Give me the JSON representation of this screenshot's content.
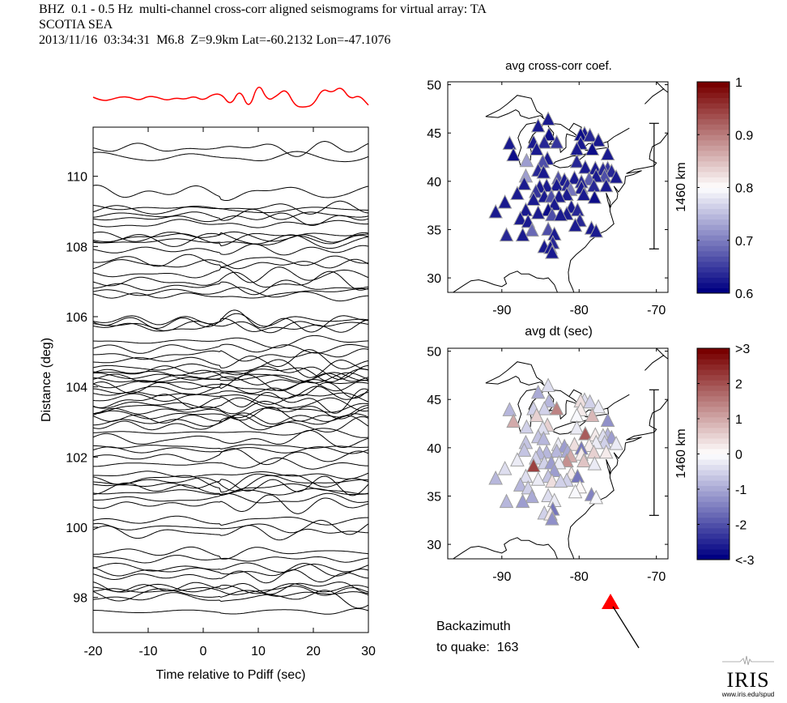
{
  "header": {
    "line1": "BHZ  0.1 - 0.5 Hz  multi-channel cross-corr aligned seismograms for virtual array: TA",
    "line2": "SCOTIA SEA",
    "line3": "2013/11/16  03:34:31  M6.8  Z=9.9km Lat=-60.2132 Lon=-47.1076"
  },
  "chart_data": [
    {
      "type": "line",
      "name": "record-section",
      "title": "",
      "xlabel": "Time relative to Pdiff (sec)",
      "ylabel": "Distance (deg)",
      "xlim": [
        -20,
        30
      ],
      "ylim": [
        97,
        111.4
      ],
      "xticks": [
        -20,
        -10,
        0,
        10,
        20,
        30
      ],
      "yticks": [
        98,
        100,
        102,
        104,
        106,
        108,
        110
      ],
      "trace_color": "#000000",
      "stack_trace": {
        "color": "#ff0000",
        "description": "stacked/beam trace above section",
        "samples": [
          0.0,
          -0.35,
          -0.2,
          0.05,
          0.0,
          -0.3,
          0.1,
          0.0,
          -0.3,
          -0.05,
          -0.2,
          0.1,
          -0.3,
          0.25,
          0.3,
          -0.8,
          0.8,
          -1.2,
          1.4,
          -0.35,
          0.1,
          0.8,
          -0.8,
          -0.9,
          -0.7,
          0.8,
          0.35,
          1.0,
          -0.2,
          0.2,
          -0.7
        ]
      },
      "trace_distances_deg": [
        110.8,
        110.55,
        109.55,
        109.1,
        109.05,
        108.9,
        108.8,
        108.65,
        108.3,
        108.25,
        108.2,
        108.15,
        107.9,
        107.6,
        107.5,
        107.2,
        107.0,
        106.85,
        106.7,
        106.6,
        105.9,
        105.85,
        105.75,
        105.7,
        105.3,
        105.1,
        104.9,
        104.75,
        104.55,
        104.45,
        104.4,
        104.3,
        104.25,
        104.2,
        104.1,
        104.0,
        103.9,
        103.8,
        103.7,
        103.6,
        103.5,
        103.4,
        103.3,
        103.2,
        103.1,
        103.0,
        102.9,
        102.7,
        102.5,
        102.3,
        102.2,
        102.0,
        101.8,
        101.5,
        101.35,
        101.3,
        101.2,
        101.1,
        101.0,
        100.8,
        100.65,
        100.2,
        100.0,
        99.85,
        99.3,
        99.1,
        98.85,
        98.75,
        98.6,
        98.3,
        98.25,
        98.2,
        98.1,
        98.0,
        97.6
      ]
    },
    {
      "type": "scatter",
      "name": "map-cross-corr",
      "title": "avg cross-corr coef.",
      "xlabel": "avg dt (sec)",
      "xlim": [
        -97,
        -68.5
      ],
      "ylim": [
        28.5,
        50.3
      ],
      "xticks": [
        -90,
        -80,
        -70
      ],
      "yticks": [
        30,
        35,
        40,
        45,
        50
      ],
      "scale_bar_label": "1460 km",
      "colorbar": {
        "min": 0.6,
        "max": 1.0,
        "ticks": [
          "0.6",
          "0.7",
          "0.8",
          "0.9",
          "1"
        ]
      },
      "marker": "triangle"
    },
    {
      "type": "scatter",
      "name": "map-dt",
      "title": "avg dt (sec)",
      "xlabel": "",
      "xlim": [
        -97,
        -68.5
      ],
      "ylim": [
        28.5,
        50.3
      ],
      "xticks": [
        -90,
        -80,
        -70
      ],
      "yticks": [
        30,
        35,
        40,
        45,
        50
      ],
      "scale_bar_label": "1460 km",
      "colorbar": {
        "min": -3,
        "max": 3,
        "ticks": [
          "<-3",
          "-2",
          "-1",
          "0",
          "1",
          "2",
          ">3"
        ]
      },
      "marker": "triangle"
    }
  ],
  "stations": [
    {
      "lon": -84.0,
      "lat": 46.4,
      "cc": 0.62,
      "dt": -0.4
    },
    {
      "lon": -85.3,
      "lat": 45.7,
      "cc": 0.62,
      "dt": -1.0
    },
    {
      "lon": -83.9,
      "lat": 44.8,
      "cc": 0.61,
      "dt": -0.9
    },
    {
      "lon": -84.5,
      "lat": 44.0,
      "cc": 0.63,
      "dt": -0.6
    },
    {
      "lon": -85.9,
      "lat": 44.0,
      "cc": 0.62,
      "dt": -0.5
    },
    {
      "lon": -85.5,
      "lat": 43.3,
      "cc": 0.62,
      "dt": 0.6
    },
    {
      "lon": -82.9,
      "lat": 44.0,
      "cc": 0.64,
      "dt": 1.4
    },
    {
      "lon": -89.0,
      "lat": 43.9,
      "cc": 0.62,
      "dt": -0.9
    },
    {
      "lon": -88.5,
      "lat": 42.7,
      "cc": 0.61,
      "dt": 1.0
    },
    {
      "lon": -86.8,
      "lat": 42.1,
      "cc": 0.72,
      "dt": -0.6
    },
    {
      "lon": -84.7,
      "lat": 42.0,
      "cc": 0.66,
      "dt": -0.4
    },
    {
      "lon": -84.1,
      "lat": 42.3,
      "cc": 0.62,
      "dt": 0.5
    },
    {
      "lon": -79.8,
      "lat": 44.8,
      "cc": 0.61,
      "dt": 0.4
    },
    {
      "lon": -79.3,
      "lat": 44.9,
      "cc": 0.62,
      "dt": -0.4
    },
    {
      "lon": -78.6,
      "lat": 44.7,
      "cc": 0.63,
      "dt": -0.6
    },
    {
      "lon": -77.5,
      "lat": 44.2,
      "cc": 0.62,
      "dt": -0.2
    },
    {
      "lon": -79.8,
      "lat": 43.9,
      "cc": 0.62,
      "dt": 0.3
    },
    {
      "lon": -80.3,
      "lat": 43.3,
      "cc": 0.62,
      "dt": -0.1
    },
    {
      "lon": -78.3,
      "lat": 43.3,
      "cc": 0.61,
      "dt": 0.8
    },
    {
      "lon": -76.3,
      "lat": 42.8,
      "cc": 0.62,
      "dt": -1.3
    },
    {
      "lon": -80.3,
      "lat": 42.0,
      "cc": 0.63,
      "dt": -0.3
    },
    {
      "lon": -79.2,
      "lat": 41.4,
      "cc": 0.62,
      "dt": 1.9
    },
    {
      "lon": -77.9,
      "lat": 41.3,
      "cc": 0.62,
      "dt": 0.3
    },
    {
      "lon": -76.9,
      "lat": 41.2,
      "cc": 0.63,
      "dt": -0.4
    },
    {
      "lon": -76.3,
      "lat": 41.3,
      "cc": 0.64,
      "dt": -0.9
    },
    {
      "lon": -75.8,
      "lat": 41.0,
      "cc": 0.63,
      "dt": -1.2
    },
    {
      "lon": -76.7,
      "lat": 40.5,
      "cc": 0.66,
      "dt": -0.5
    },
    {
      "lon": -75.2,
      "lat": 40.4,
      "cc": 0.62,
      "dt": -0.2
    },
    {
      "lon": -77.8,
      "lat": 40.5,
      "cc": 0.62,
      "dt": -0.3
    },
    {
      "lon": -78.7,
      "lat": 40.2,
      "cc": 0.67,
      "dt": 0.3
    },
    {
      "lon": -78.1,
      "lat": 39.5,
      "cc": 0.63,
      "dt": 0.6
    },
    {
      "lon": -76.5,
      "lat": 39.5,
      "cc": 0.62,
      "dt": 0.3
    },
    {
      "lon": -79.7,
      "lat": 39.3,
      "cc": 0.62,
      "dt": 0.2
    },
    {
      "lon": -80.6,
      "lat": 40.3,
      "cc": 0.62,
      "dt": 0.4
    },
    {
      "lon": -79.7,
      "lat": 39.9,
      "cc": 0.63,
      "dt": -1.6
    },
    {
      "lon": -81.1,
      "lat": 39.1,
      "cc": 0.69,
      "dt": 1.0
    },
    {
      "lon": -81.9,
      "lat": 40.1,
      "cc": 0.62,
      "dt": -1.2
    },
    {
      "lon": -82.7,
      "lat": 40.3,
      "cc": 0.66,
      "dt": -0.3
    },
    {
      "lon": -82.9,
      "lat": 39.6,
      "cc": 0.62,
      "dt": -0.8
    },
    {
      "lon": -81.5,
      "lat": 39.6,
      "cc": 0.63,
      "dt": -1.0
    },
    {
      "lon": -79.4,
      "lat": 38.6,
      "cc": 0.62,
      "dt": 0.7
    },
    {
      "lon": -78.0,
      "lat": 38.3,
      "cc": 0.61,
      "dt": -0.2
    },
    {
      "lon": -85.3,
      "lat": 41.1,
      "cc": 0.63,
      "dt": -0.7
    },
    {
      "lon": -84.6,
      "lat": 40.9,
      "cc": 0.62,
      "dt": -0.8
    },
    {
      "lon": -86.9,
      "lat": 40.5,
      "cc": 0.72,
      "dt": -0.7
    },
    {
      "lon": -87.1,
      "lat": 39.7,
      "cc": 0.62,
      "dt": -0.7
    },
    {
      "lon": -85.1,
      "lat": 39.4,
      "cc": 0.62,
      "dt": -0.9
    },
    {
      "lon": -84.2,
      "lat": 39.5,
      "cc": 0.62,
      "dt": -0.8
    },
    {
      "lon": -85.6,
      "lat": 38.9,
      "cc": 0.64,
      "dt": -0.6
    },
    {
      "lon": -84.5,
      "lat": 38.4,
      "cc": 0.62,
      "dt": -0.6
    },
    {
      "lon": -83.6,
      "lat": 38.4,
      "cc": 0.66,
      "dt": -1.1
    },
    {
      "lon": -82.6,
      "lat": 38.4,
      "cc": 0.62,
      "dt": -0.3
    },
    {
      "lon": -81.6,
      "lat": 38.6,
      "cc": 0.62,
      "dt": 1.3
    },
    {
      "lon": -85.9,
      "lat": 38.1,
      "cc": 0.62,
      "dt": 2.3
    },
    {
      "lon": -88.0,
      "lat": 38.7,
      "cc": 0.62,
      "dt": -0.3
    },
    {
      "lon": -89.6,
      "lat": 37.8,
      "cc": 0.62,
      "dt": -0.4
    },
    {
      "lon": -90.8,
      "lat": 36.8,
      "cc": 0.62,
      "dt": -0.9
    },
    {
      "lon": -86.9,
      "lat": 37.0,
      "cc": 0.62,
      "dt": -0.4
    },
    {
      "lon": -85.3,
      "lat": 36.7,
      "cc": 0.62,
      "dt": -0.3
    },
    {
      "lon": -84.0,
      "lat": 37.0,
      "cc": 0.61,
      "dt": -0.7
    },
    {
      "lon": -83.5,
      "lat": 36.5,
      "cc": 0.66,
      "dt": 0.4
    },
    {
      "lon": -83.2,
      "lat": 37.6,
      "cc": 0.62,
      "dt": -1.1
    },
    {
      "lon": -82.4,
      "lat": 36.5,
      "cc": 0.62,
      "dt": -0.6
    },
    {
      "lon": -81.6,
      "lat": 36.6,
      "cc": 0.62,
      "dt": -0.5
    },
    {
      "lon": -81.0,
      "lat": 37.3,
      "cc": 0.62,
      "dt": 0.3
    },
    {
      "lon": -80.2,
      "lat": 37.0,
      "cc": 0.63,
      "dt": -1.6
    },
    {
      "lon": -87.6,
      "lat": 36.1,
      "cc": 0.62,
      "dt": -0.8
    },
    {
      "lon": -86.6,
      "lat": 35.8,
      "cc": 0.62,
      "dt": -0.5
    },
    {
      "lon": -86.1,
      "lat": 34.9,
      "cc": 0.68,
      "dt": -1.0
    },
    {
      "lon": -89.4,
      "lat": 34.4,
      "cc": 0.63,
      "dt": -0.9
    },
    {
      "lon": -87.3,
      "lat": 34.4,
      "cc": 0.62,
      "dt": -1.2
    },
    {
      "lon": -84.0,
      "lat": 35.0,
      "cc": 0.66,
      "dt": -0.4
    },
    {
      "lon": -83.2,
      "lat": 34.5,
      "cc": 0.62,
      "dt": -0.3
    },
    {
      "lon": -84.5,
      "lat": 33.2,
      "cc": 0.62,
      "dt": -0.5
    },
    {
      "lon": -83.7,
      "lat": 33.1,
      "cc": 0.62,
      "dt": 0.3
    },
    {
      "lon": -83.4,
      "lat": 33.6,
      "cc": 0.63,
      "dt": -1.6
    },
    {
      "lon": -83.5,
      "lat": 32.6,
      "cc": 0.62,
      "dt": -1.3
    },
    {
      "lon": -80.5,
      "lat": 35.4,
      "cc": 0.62,
      "dt": -0.1
    },
    {
      "lon": -79.9,
      "lat": 35.9,
      "cc": 0.63,
      "dt": 0.0
    },
    {
      "lon": -78.4,
      "lat": 35.1,
      "cc": 0.62,
      "dt": -1.4
    },
    {
      "lon": -77.8,
      "lat": 34.8,
      "cc": 0.62,
      "dt": -0.1
    }
  ],
  "backazimuth": {
    "label_line1": "Backazimuth",
    "label_line2": "to quake:  163",
    "value_deg": 163,
    "marker_color": "#ff0000"
  },
  "logo": {
    "name": "IRIS",
    "url_text": "www.iris.edu/spud"
  },
  "colors": {
    "trace": "#000000",
    "stack": "#ff0000",
    "coast": "#000000",
    "frame": "#808080"
  }
}
